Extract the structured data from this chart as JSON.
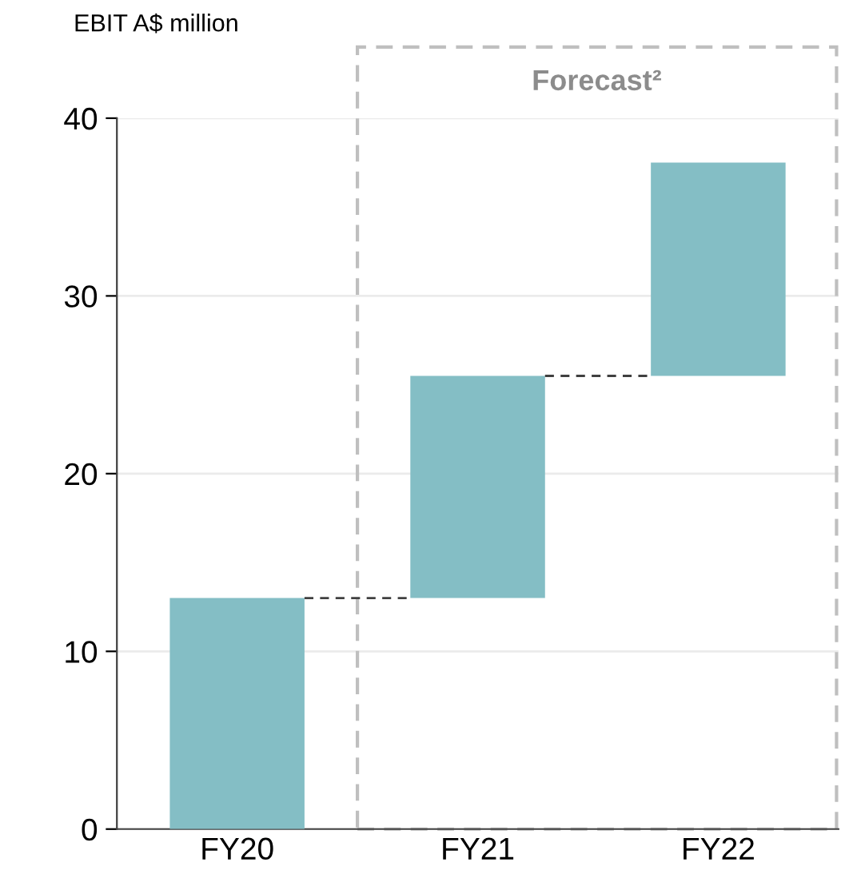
{
  "chart_data": {
    "type": "bar",
    "ylabel": "EBIT A$ million",
    "categories": [
      "FY20",
      "FY21",
      "FY22"
    ],
    "values": [
      13,
      12.5,
      12
    ],
    "base": [
      0,
      13,
      25.5
    ],
    "color": "#84bec5",
    "ylim": [
      0,
      40
    ],
    "yticks": [
      0,
      10,
      20,
      30,
      40
    ],
    "grid": "y",
    "annotations": [
      "Forecast²"
    ]
  }
}
